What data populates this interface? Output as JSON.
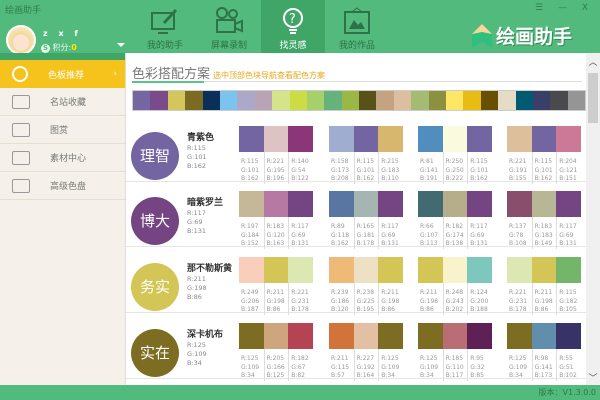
{
  "app": {
    "title": "绘画助手",
    "logo_text": "绘画助手",
    "window_controls": "☰ — X"
  },
  "user": {
    "name": "z x f",
    "score_label": "积分:",
    "score": "0",
    "score_icon": "S"
  },
  "tabs": [
    {
      "label": "我的助手",
      "icon": "monitor-eyedropper-icon"
    },
    {
      "label": "屏幕录制",
      "icon": "video-camera-icon"
    },
    {
      "label": "找灵感",
      "icon": "lightbulb-question-icon",
      "active": true
    },
    {
      "label": "我的作品",
      "icon": "picture-frame-icon"
    }
  ],
  "sidebar": {
    "items": [
      {
        "label": "色板推荐",
        "icon": "palette-icon",
        "active": true
      },
      {
        "label": "名站收藏",
        "icon": "bookmark-folder-icon"
      },
      {
        "label": "图赏",
        "icon": "image-icon"
      },
      {
        "label": "素材中心",
        "icon": "gift-icon"
      },
      {
        "label": "高级色盘",
        "icon": "color-wheel-icon"
      }
    ]
  },
  "main": {
    "title": "色彩搭配方案",
    "subtitle": "选中顶部色块导航查看配色方案",
    "palette": [
      "#7565a3",
      "#7a4a8a",
      "#d3c65a",
      "#7a6a22",
      "#0a2f58",
      "#7bc4ee",
      "#aca8c8",
      "#b9a4b5",
      "#d5e38a",
      "#cbdc44",
      "#a7d06a",
      "#66b27c",
      "#9bb847",
      "#585219",
      "#c5a381",
      "#dcbfa0",
      "#a3bb72",
      "#8c913f",
      "#ffe766",
      "#e8bc13",
      "#685000",
      "#e5dcc8",
      "#005a72",
      "#393f66",
      "#4a4a4e",
      "#959595"
    ],
    "schemes": [
      {
        "word": "理智",
        "name": "青紫色",
        "rgb": [
          115,
          101,
          162
        ],
        "groups": [
          [
            [
              115,
              101,
              162
            ],
            [
              221,
              195,
              196
            ],
            [
              140,
              54,
              122
            ]
          ],
          [
            [
              158,
              173,
              208
            ],
            [
              115,
              101,
              162
            ],
            [
              215,
              183,
              110
            ]
          ],
          [
            [
              81,
              141,
              191
            ],
            [
              250,
              250,
              222
            ],
            [
              115,
              101,
              162
            ]
          ],
          [
            [
              221,
              191,
              155
            ],
            [
              115,
              101,
              162
            ],
            [
              204,
              121,
              151
            ]
          ]
        ]
      },
      {
        "word": "博大",
        "name": "暗紫罗兰",
        "rgb": [
          117,
          69,
          131
        ],
        "groups": [
          [
            [
              197,
              184,
              152
            ],
            [
              183,
              120,
              163
            ],
            [
              117,
              69,
              131
            ]
          ],
          [
            [
              89,
              118,
              162
            ],
            [
              165,
              181,
              178
            ],
            [
              117,
              69,
              131
            ]
          ],
          [
            [
              66,
              107,
              113
            ],
            [
              182,
              174,
              138
            ],
            [
              117,
              69,
              131
            ]
          ],
          [
            [
              137,
              78,
              108
            ],
            [
              183,
              183,
              149
            ],
            [
              117,
              69,
              131
            ]
          ]
        ]
      },
      {
        "word": "务实",
        "name": "那不勒斯黄",
        "rgb": [
          211,
          198,
          86
        ],
        "groups": [
          [
            [
              249,
              206,
              187
            ],
            [
              211,
              198,
              86
            ],
            [
              221,
              231,
              178
            ]
          ],
          [
            [
              239,
              186,
              120
            ],
            [
              238,
              225,
              195
            ],
            [
              211,
              198,
              86
            ]
          ],
          [
            [
              211,
              198,
              86
            ],
            [
              248,
              243,
              202
            ],
            [
              124,
              200,
              188
            ]
          ],
          [
            [
              221,
              231,
              178
            ],
            [
              211,
              198,
              86
            ],
            [
              115,
              182,
              105
            ]
          ]
        ]
      },
      {
        "word": "实在",
        "name": "深卡机布",
        "rgb": [
          125,
          109,
          34
        ],
        "groups": [
          [
            [
              125,
              109,
              34
            ],
            [
              205,
              166,
              125
            ],
            [
              182,
              67,
              82
            ]
          ],
          [
            [
              211,
              115,
              57
            ],
            [
              227,
              192,
              164
            ],
            [
              125,
              109,
              34
            ]
          ],
          [
            [
              125,
              109,
              34
            ],
            [
              185,
              110,
              117
            ],
            [
              95,
              32,
              85
            ]
          ],
          [
            [
              125,
              109,
              34
            ],
            [
              98,
              141,
              173
            ],
            [
              55,
              51,
              102
            ]
          ]
        ]
      }
    ]
  },
  "status": {
    "version": "版本：V1.3.0.0"
  }
}
